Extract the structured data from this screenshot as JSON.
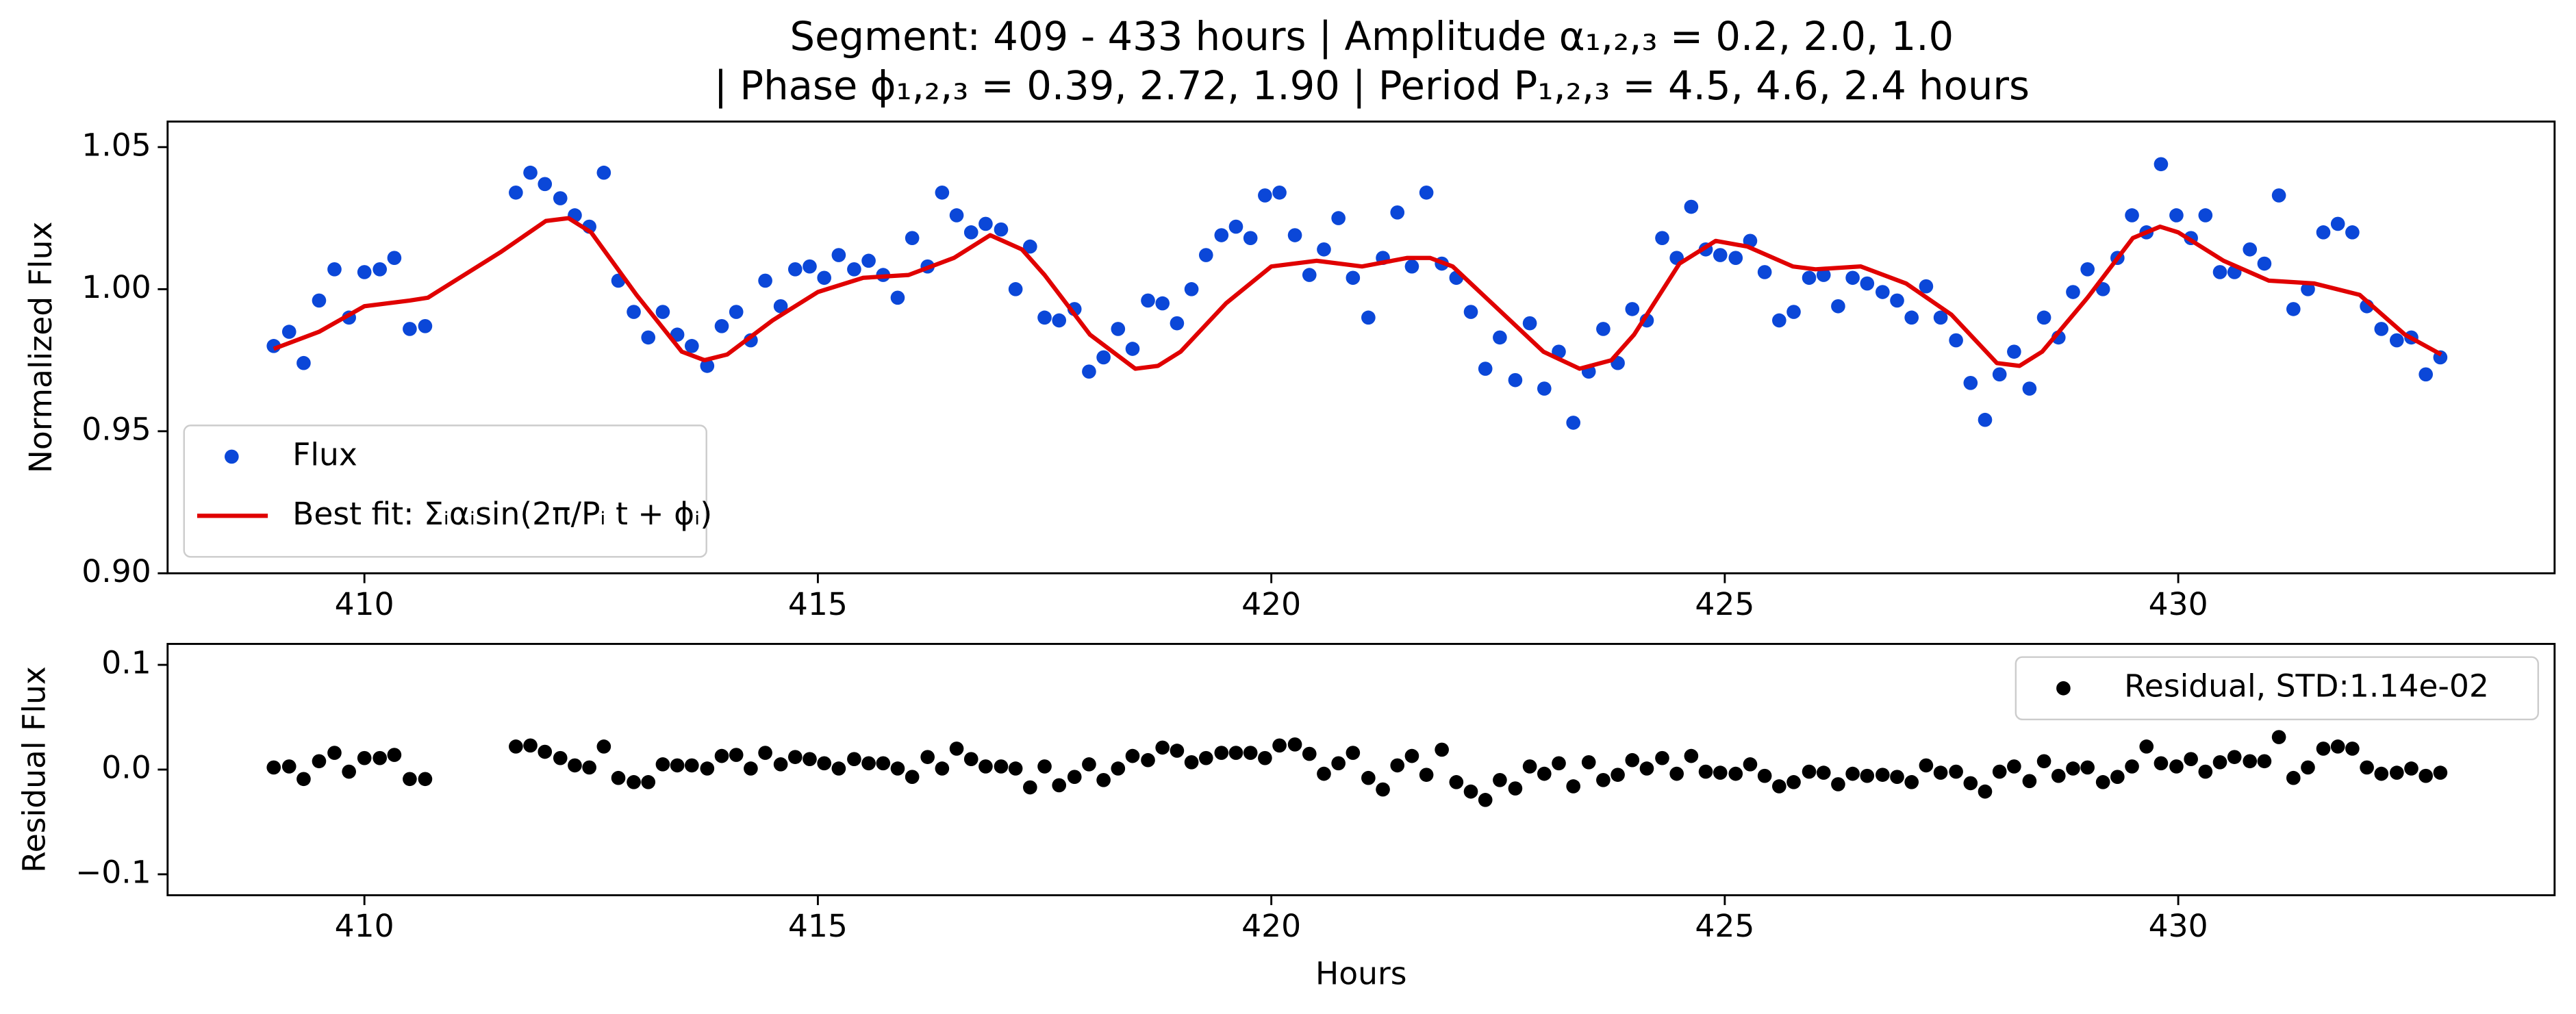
{
  "chart_data": [
    {
      "type": "scatter",
      "title": [
        "Segment: 409 - 433 hours  |  Amplitude α₁,₂,₃ = 0.2, 2.0, 1.0",
        "|  Phase ϕ₁,₂,₃ = 0.39, 2.72, 1.90  |  Period P₁,₂,₃ = 4.5, 4.6, 2.4 hours"
      ],
      "ylabel": "Normalized Flux",
      "xlim": [
        407.83,
        434.15
      ],
      "ylim": [
        0.9,
        1.059
      ],
      "xticks": [
        410,
        415,
        420,
        425,
        430
      ],
      "yticks": [
        {
          "value": 0.9,
          "label": "0.90"
        },
        {
          "value": 0.95,
          "label": "0.95"
        },
        {
          "value": 1.0,
          "label": "1.00"
        },
        {
          "value": 1.05,
          "label": "1.05"
        }
      ],
      "legend": "lower left",
      "grid": false,
      "series": [
        {
          "name": "Flux",
          "color": "#0b47d8",
          "style": "marker",
          "x": [
            409.0,
            409.17,
            409.33,
            409.5,
            409.67,
            409.83,
            410.0,
            410.17,
            410.33,
            410.5,
            410.67,
            411.67,
            411.83,
            411.99,
            412.16,
            412.32,
            412.48,
            412.64,
            412.8,
            412.97,
            413.13,
            413.29,
            413.45,
            413.61,
            413.78,
            413.94,
            414.1,
            414.26,
            414.42,
            414.59,
            414.75,
            414.91,
            415.07,
            415.23,
            415.4,
            415.56,
            415.72,
            415.88,
            416.04,
            416.21,
            416.37,
            416.53,
            416.69,
            416.85,
            417.02,
            417.18,
            417.34,
            417.5,
            417.66,
            417.83,
            417.99,
            418.15,
            418.31,
            418.47,
            418.64,
            418.8,
            418.96,
            419.12,
            419.28,
            419.45,
            419.61,
            419.77,
            419.93,
            420.09,
            420.26,
            420.42,
            420.58,
            420.74,
            420.9,
            421.07,
            421.23,
            421.39,
            421.55,
            421.71,
            421.88,
            422.04,
            422.2,
            422.36,
            422.52,
            422.69,
            422.85,
            423.01,
            423.17,
            423.33,
            423.5,
            423.66,
            423.82,
            423.98,
            424.14,
            424.31,
            424.47,
            424.63,
            424.79,
            424.95,
            425.12,
            425.28,
            425.44,
            425.6,
            425.76,
            425.93,
            426.09,
            426.25,
            426.41,
            426.57,
            426.74,
            426.9,
            427.06,
            427.22,
            427.38,
            427.55,
            427.71,
            427.87,
            428.03,
            428.19,
            428.36,
            428.52,
            428.68,
            428.84,
            429.0,
            429.17,
            429.33,
            429.49,
            429.65,
            429.81,
            429.98,
            430.14,
            430.3,
            430.46,
            430.62,
            430.79,
            430.95,
            431.11,
            431.27,
            431.43,
            431.6,
            431.76,
            431.92,
            432.08,
            432.24,
            432.41,
            432.57,
            432.73,
            432.89
          ],
          "values": [
            0.98,
            0.985,
            0.974,
            0.996,
            1.007,
            0.99,
            1.006,
            1.007,
            1.011,
            0.986,
            0.987,
            1.034,
            1.041,
            1.037,
            1.032,
            1.026,
            1.022,
            1.041,
            1.003,
            0.992,
            0.983,
            0.992,
            0.984,
            0.98,
            0.973,
            0.987,
            0.992,
            0.982,
            1.003,
            0.994,
            1.007,
            1.008,
            1.004,
            1.012,
            1.007,
            1.01,
            1.005,
            0.997,
            1.018,
            1.008,
            1.034,
            1.026,
            1.02,
            1.023,
            1.021,
            1.0,
            1.015,
            0.99,
            0.989,
            0.993,
            0.971,
            0.976,
            0.986,
            0.979,
            0.996,
            0.995,
            0.988,
            1.0,
            1.012,
            1.019,
            1.022,
            1.018,
            1.033,
            1.034,
            1.019,
            1.005,
            1.014,
            1.025,
            1.004,
            0.99,
            1.011,
            1.027,
            1.008,
            1.034,
            1.009,
            1.004,
            0.992,
            0.972,
            0.983,
            0.968,
            0.988,
            0.965,
            0.978,
            0.953,
            0.971,
            0.986,
            0.974,
            0.993,
            0.989,
            1.018,
            1.011,
            1.029,
            1.014,
            1.012,
            1.011,
            1.017,
            1.006,
            0.989,
            0.992,
            1.004,
            1.005,
            0.994,
            1.004,
            1.002,
            0.999,
            0.996,
            0.99,
            1.001,
            0.99,
            0.982,
            0.967,
            0.954,
            0.97,
            0.978,
            0.965,
            0.99,
            0.983,
            0.999,
            1.007,
            1.0,
            1.011,
            1.026,
            1.02,
            1.044,
            1.026,
            1.018,
            1.026,
            1.006,
            1.006,
            1.014,
            1.009,
            1.033,
            0.993,
            1.0,
            1.02,
            1.023,
            1.02,
            0.994,
            0.986,
            0.982,
            0.983,
            0.97,
            0.976
          ]
        },
        {
          "name": "Best fit: Σᵢαᵢsin(2π/Pᵢ t + ϕᵢ)",
          "color": "#e00000",
          "style": "line",
          "x": [
            409.0,
            409.5,
            410.0,
            410.5,
            410.7,
            411.5,
            412.0,
            412.25,
            412.5,
            413.0,
            413.5,
            413.75,
            414.0,
            414.5,
            415.0,
            415.5,
            416.0,
            416.5,
            416.9,
            417.25,
            417.5,
            418.0,
            418.5,
            418.75,
            419.0,
            419.5,
            420.0,
            420.5,
            421.0,
            421.5,
            421.75,
            422.0,
            422.5,
            423.0,
            423.4,
            423.75,
            424.0,
            424.5,
            424.9,
            425.25,
            425.75,
            426.0,
            426.5,
            427.0,
            427.5,
            428.0,
            428.25,
            428.5,
            429.0,
            429.5,
            429.8,
            430.0,
            430.5,
            431.0,
            431.5,
            432.0,
            432.5,
            432.9
          ],
          "values": [
            0.979,
            0.985,
            0.994,
            0.996,
            0.997,
            1.013,
            1.024,
            1.025,
            1.02,
            0.998,
            0.978,
            0.975,
            0.977,
            0.989,
            0.999,
            1.004,
            1.005,
            1.011,
            1.019,
            1.014,
            1.005,
            0.984,
            0.972,
            0.973,
            0.978,
            0.995,
            1.008,
            1.01,
            1.008,
            1.011,
            1.011,
            1.008,
            0.993,
            0.978,
            0.972,
            0.975,
            0.984,
            1.009,
            1.017,
            1.015,
            1.008,
            1.007,
            1.008,
            1.002,
            0.991,
            0.974,
            0.973,
            0.978,
            0.997,
            1.018,
            1.022,
            1.02,
            1.01,
            1.003,
            1.002,
            0.998,
            0.984,
            0.977
          ]
        }
      ]
    },
    {
      "type": "scatter",
      "ylabel": "Residual Flux",
      "xlabel": "Hours",
      "xlim": [
        407.83,
        434.15
      ],
      "ylim": [
        -0.12,
        0.12
      ],
      "xticks": [
        410,
        415,
        420,
        425,
        430
      ],
      "yticks": [
        {
          "value": -0.1,
          "label": "−0.1"
        },
        {
          "value": 0,
          "label": "0.0"
        },
        0.1
      ],
      "legend": "upper right",
      "grid": false,
      "series": [
        {
          "name": "Residual, STD:1.14e-02",
          "color": "#000000",
          "style": "marker",
          "x": [
            409.0,
            409.17,
            409.33,
            409.5,
            409.67,
            409.83,
            410.0,
            410.17,
            410.33,
            410.5,
            410.67,
            411.67,
            411.83,
            411.99,
            412.16,
            412.32,
            412.48,
            412.64,
            412.8,
            412.97,
            413.13,
            413.29,
            413.45,
            413.61,
            413.78,
            413.94,
            414.1,
            414.26,
            414.42,
            414.59,
            414.75,
            414.91,
            415.07,
            415.23,
            415.4,
            415.56,
            415.72,
            415.88,
            416.04,
            416.21,
            416.37,
            416.53,
            416.69,
            416.85,
            417.02,
            417.18,
            417.34,
            417.5,
            417.66,
            417.83,
            417.99,
            418.15,
            418.31,
            418.47,
            418.64,
            418.8,
            418.96,
            419.12,
            419.28,
            419.45,
            419.61,
            419.77,
            419.93,
            420.09,
            420.26,
            420.42,
            420.58,
            420.74,
            420.9,
            421.07,
            421.23,
            421.39,
            421.55,
            421.71,
            421.88,
            422.04,
            422.2,
            422.36,
            422.52,
            422.69,
            422.85,
            423.01,
            423.17,
            423.33,
            423.5,
            423.66,
            423.82,
            423.98,
            424.14,
            424.31,
            424.47,
            424.63,
            424.79,
            424.95,
            425.12,
            425.28,
            425.44,
            425.6,
            425.76,
            425.93,
            426.09,
            426.25,
            426.41,
            426.57,
            426.74,
            426.9,
            427.06,
            427.22,
            427.38,
            427.55,
            427.71,
            427.87,
            428.03,
            428.19,
            428.36,
            428.52,
            428.68,
            428.84,
            429.0,
            429.17,
            429.33,
            429.49,
            429.65,
            429.81,
            429.98,
            430.14,
            430.3,
            430.46,
            430.62,
            430.79,
            430.95,
            431.11,
            431.27,
            431.43,
            431.6,
            431.76,
            431.92,
            432.08,
            432.24,
            432.41,
            432.57,
            432.73,
            432.89
          ],
          "values": [
            0.002,
            0.003,
            -0.009,
            0.008,
            0.016,
            -0.002,
            0.011,
            0.011,
            0.014,
            -0.009,
            -0.009,
            0.022,
            0.023,
            0.017,
            0.011,
            0.004,
            0.002,
            0.022,
            -0.008,
            -0.012,
            -0.012,
            0.005,
            0.004,
            0.004,
            0.001,
            0.013,
            0.014,
            0.001,
            0.016,
            0.005,
            0.012,
            0.01,
            0.006,
            0.001,
            0.01,
            0.006,
            0.006,
            0.001,
            -0.007,
            0.012,
            0.001,
            0.02,
            0.01,
            0.003,
            0.003,
            0.001,
            -0.017,
            0.003,
            -0.015,
            -0.007,
            0.005,
            -0.01,
            0.001,
            0.013,
            0.009,
            0.021,
            0.018,
            0.007,
            0.011,
            0.016,
            0.016,
            0.016,
            0.011,
            0.023,
            0.024,
            0.015,
            -0.004,
            0.006,
            0.016,
            -0.008,
            -0.019,
            0.004,
            0.013,
            -0.005,
            0.019,
            -0.012,
            -0.021,
            -0.029,
            -0.01,
            -0.018,
            0.003,
            -0.004,
            0.006,
            -0.016,
            0.007,
            -0.01,
            -0.005,
            0.009,
            0.001,
            0.011,
            -0.004,
            0.013,
            -0.002,
            -0.003,
            -0.004,
            0.005,
            -0.006,
            -0.016,
            -0.012,
            -0.002,
            -0.003,
            -0.014,
            -0.004,
            -0.006,
            -0.005,
            -0.007,
            -0.012,
            0.004,
            -0.003,
            -0.002,
            -0.013,
            -0.021,
            -0.002,
            0.003,
            -0.011,
            0.008,
            -0.006,
            0.001,
            0.002,
            -0.012,
            -0.007,
            0.003,
            0.022,
            0.006,
            0.003,
            0.01,
            -0.002,
            0.007,
            0.012,
            0.008,
            0.008,
            0.031,
            -0.008,
            0.002,
            0.02,
            0.022,
            0.02,
            0.002,
            -0.004,
            -0.003,
            0.001,
            -0.006,
            -0.003
          ]
        }
      ]
    }
  ]
}
